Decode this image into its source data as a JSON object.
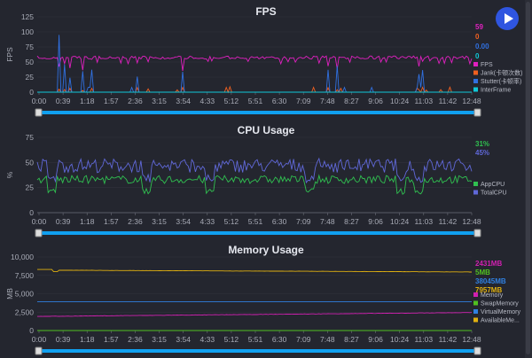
{
  "time_labels": [
    "0:00",
    "0:39",
    "1:18",
    "1:57",
    "2:36",
    "3:15",
    "3:54",
    "4:33",
    "5:12",
    "5:51",
    "6:30",
    "7:09",
    "7:48",
    "8:27",
    "9:06",
    "10:24",
    "11:03",
    "11:42",
    "12:48"
  ],
  "fps": {
    "title": "FPS",
    "ylabel": "FPS",
    "yticks": [
      "0",
      "25",
      "50",
      "75",
      "100",
      "125"
    ],
    "current": [
      "59",
      "0",
      "0.00",
      "0"
    ],
    "legend": [
      "FPS",
      "Jank(卡顿次数)",
      "Stutter(卡顿率)",
      "InterFrame"
    ],
    "colors": [
      "#e020c0",
      "#f06020",
      "#3070e0",
      "#10c8d8"
    ]
  },
  "cpu": {
    "title": "CPU Usage",
    "ylabel": "%",
    "yticks": [
      "0",
      "25",
      "50",
      "75"
    ],
    "current": [
      "31%",
      "45%"
    ],
    "legend": [
      "AppCPU",
      "TotalCPU"
    ],
    "colors": [
      "#30c050",
      "#6068d8"
    ]
  },
  "memory": {
    "title": "Memory Usage",
    "ylabel": "MB",
    "yticks": [
      "0",
      "2,500",
      "5,000",
      "7,500",
      "10,000"
    ],
    "current": [
      "2431MB",
      "5MB",
      "38045MB",
      "7957MB"
    ],
    "legend": [
      "Memory",
      "SwapMemory",
      "VirtualMemory",
      "AvailableMe..."
    ],
    "colors": [
      "#d020b0",
      "#50c020",
      "#3080e0",
      "#e0b010"
    ]
  },
  "chart_data": [
    {
      "type": "line",
      "title": "FPS",
      "ylabel": "FPS",
      "ylim": [
        0,
        125
      ],
      "series": [
        {
          "name": "FPS",
          "typical": 59
        },
        {
          "name": "Jank(卡顿次数)",
          "typical": 0
        },
        {
          "name": "Stutter(卡顿率)",
          "typical": 0
        },
        {
          "name": "InterFrame",
          "typical": 0
        }
      ]
    },
    {
      "type": "line",
      "title": "CPU Usage",
      "ylabel": "%",
      "ylim": [
        0,
        75
      ],
      "series": [
        {
          "name": "AppCPU",
          "typical": 31
        },
        {
          "name": "TotalCPU",
          "typical": 45
        }
      ]
    },
    {
      "type": "line",
      "title": "Memory Usage",
      "ylabel": "MB",
      "ylim": [
        0,
        10000
      ],
      "series": [
        {
          "name": "Memory",
          "start": 1900,
          "end": 2431
        },
        {
          "name": "SwapMemory",
          "typical": 5
        },
        {
          "name": "VirtualMemory",
          "typical": 38045
        },
        {
          "name": "AvailableMemory",
          "start": 8300,
          "end": 7957
        }
      ]
    }
  ]
}
